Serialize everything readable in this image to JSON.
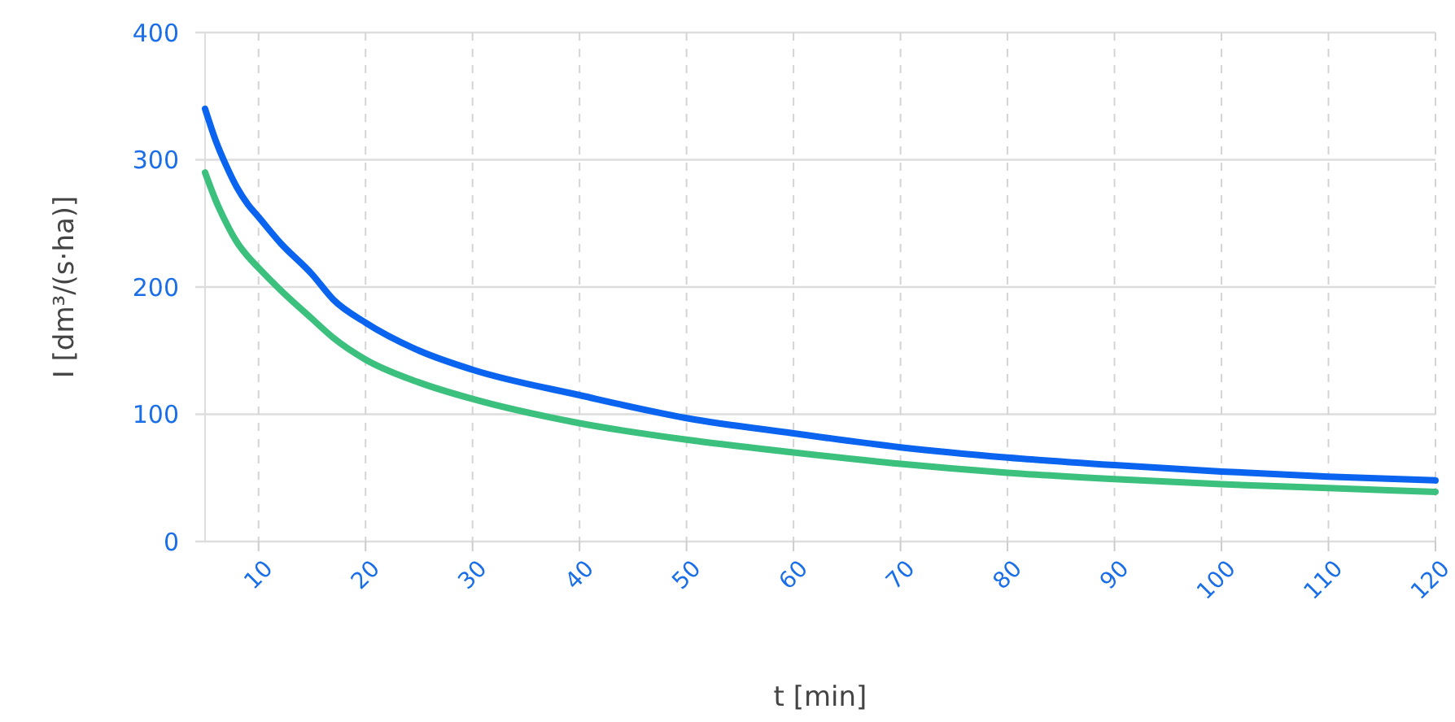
{
  "chart_data": {
    "type": "line",
    "xlabel": "t [min]",
    "ylabel": "I [dm³/(s·ha)]",
    "x": [
      5,
      6,
      7,
      8,
      9,
      10,
      12,
      15,
      17,
      20,
      25,
      30,
      40,
      50,
      60,
      70,
      80,
      90,
      100,
      110,
      120
    ],
    "series": [
      {
        "color": "#0a64f0",
        "values": [
          340,
          315,
          295,
          278,
          265,
          255,
          235,
          210,
          190,
          172,
          150,
          135,
          115,
          97,
          85,
          74,
          66,
          60,
          55,
          51,
          48
        ]
      },
      {
        "color": "#3cc07e",
        "values": [
          290,
          268,
          250,
          235,
          224,
          215,
          198,
          175,
          160,
          143,
          125,
          112,
          93,
          80,
          70,
          61,
          54,
          49,
          45,
          42,
          39
        ]
      }
    ],
    "xlim": [
      5,
      120
    ],
    "xticks": [
      10,
      20,
      30,
      40,
      50,
      60,
      70,
      80,
      90,
      100,
      110,
      120
    ],
    "ylim": [
      0,
      400
    ],
    "yticks": [
      0,
      100,
      200,
      300,
      400
    ],
    "grid": true,
    "marker": "none",
    "line_style": "solid"
  }
}
